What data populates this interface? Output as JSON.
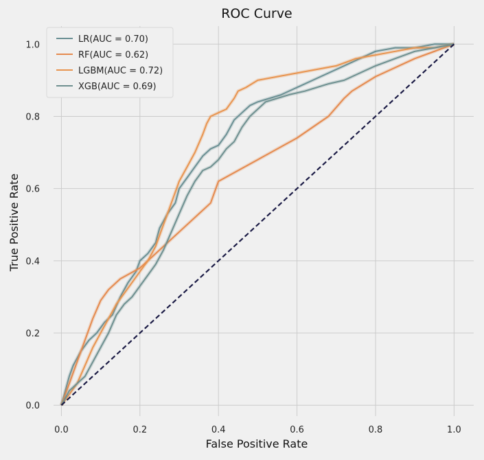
{
  "chart_data": {
    "type": "line",
    "title": "ROC Curve",
    "xlabel": "False Positive Rate",
    "ylabel": "True Positive Rate",
    "xlim": [
      -0.02,
      1.05
    ],
    "ylim": [
      -0.03,
      1.05
    ],
    "xticks": [
      0.0,
      0.2,
      0.4,
      0.6,
      0.8,
      1.0
    ],
    "yticks": [
      0.0,
      0.2,
      0.4,
      0.6,
      0.8,
      1.0
    ],
    "tick_labels": [
      "0.0",
      "0.2",
      "0.4",
      "0.6",
      "0.8",
      "1.0"
    ],
    "grid": true,
    "legend_position": "top-left",
    "colors": {
      "background": "#f0f0f0",
      "grid": "#cbcbcb",
      "lr": "#6a8f93",
      "rf": "#e58a4e",
      "lgbm": "#e8944f",
      "xgb": "#6e9090",
      "diagonal": "#1b1b45"
    },
    "series": [
      {
        "name": "LR(AUC = 0.70)",
        "color": "#6a8f93",
        "x": [
          0,
          0.01,
          0.02,
          0.03,
          0.05,
          0.07,
          0.09,
          0.11,
          0.13,
          0.15,
          0.17,
          0.19,
          0.2,
          0.22,
          0.24,
          0.25,
          0.27,
          0.29,
          0.3,
          0.32,
          0.34,
          0.36,
          0.38,
          0.4,
          0.42,
          0.44,
          0.46,
          0.48,
          0.5,
          0.53,
          0.56,
          0.6,
          0.64,
          0.68,
          0.72,
          0.76,
          0.8,
          0.85,
          0.9,
          0.95,
          1.0
        ],
        "y": [
          0,
          0.04,
          0.08,
          0.11,
          0.15,
          0.18,
          0.2,
          0.23,
          0.25,
          0.3,
          0.34,
          0.37,
          0.4,
          0.42,
          0.45,
          0.49,
          0.53,
          0.56,
          0.6,
          0.63,
          0.66,
          0.69,
          0.71,
          0.72,
          0.75,
          0.79,
          0.81,
          0.83,
          0.84,
          0.85,
          0.86,
          0.88,
          0.9,
          0.92,
          0.94,
          0.96,
          0.98,
          0.99,
          0.99,
          1.0,
          1.0
        ]
      },
      {
        "name": "RF(AUC = 0.62)",
        "color": "#e58a4e",
        "x": [
          0,
          0.02,
          0.05,
          0.08,
          0.1,
          0.12,
          0.15,
          0.2,
          0.25,
          0.3,
          0.35,
          0.38,
          0.4,
          0.5,
          0.6,
          0.68,
          0.72,
          0.74,
          0.8,
          0.9,
          1.0
        ],
        "y": [
          0,
          0.06,
          0.15,
          0.24,
          0.29,
          0.32,
          0.35,
          0.38,
          0.43,
          0.48,
          0.53,
          0.56,
          0.62,
          0.68,
          0.74,
          0.8,
          0.85,
          0.87,
          0.91,
          0.96,
          1.0
        ]
      },
      {
        "name": "LGBM(AUC = 0.72)",
        "color": "#e8944f",
        "x": [
          0,
          0.02,
          0.04,
          0.06,
          0.08,
          0.1,
          0.12,
          0.14,
          0.16,
          0.18,
          0.2,
          0.22,
          0.24,
          0.26,
          0.28,
          0.3,
          0.32,
          0.34,
          0.36,
          0.37,
          0.38,
          0.4,
          0.42,
          0.44,
          0.45,
          0.47,
          0.5,
          0.55,
          0.6,
          0.65,
          0.7,
          0.75,
          0.8,
          0.85,
          0.9,
          0.95,
          1.0
        ],
        "y": [
          0,
          0.03,
          0.06,
          0.11,
          0.16,
          0.2,
          0.24,
          0.28,
          0.31,
          0.34,
          0.37,
          0.4,
          0.44,
          0.5,
          0.56,
          0.62,
          0.66,
          0.7,
          0.75,
          0.78,
          0.8,
          0.81,
          0.82,
          0.85,
          0.87,
          0.88,
          0.9,
          0.91,
          0.92,
          0.93,
          0.94,
          0.96,
          0.97,
          0.98,
          0.99,
          0.99,
          1.0
        ]
      },
      {
        "name": "XGB(AUC = 0.69)",
        "color": "#6e9090",
        "x": [
          0,
          0.01,
          0.02,
          0.04,
          0.06,
          0.08,
          0.1,
          0.12,
          0.14,
          0.16,
          0.18,
          0.2,
          0.22,
          0.24,
          0.26,
          0.28,
          0.3,
          0.32,
          0.34,
          0.36,
          0.38,
          0.4,
          0.42,
          0.44,
          0.46,
          0.48,
          0.5,
          0.52,
          0.55,
          0.58,
          0.62,
          0.65,
          0.68,
          0.72,
          0.76,
          0.8,
          0.85,
          0.9,
          0.95,
          1.0
        ],
        "y": [
          0,
          0.02,
          0.04,
          0.06,
          0.08,
          0.12,
          0.16,
          0.2,
          0.25,
          0.28,
          0.3,
          0.33,
          0.36,
          0.39,
          0.43,
          0.48,
          0.53,
          0.58,
          0.62,
          0.65,
          0.66,
          0.68,
          0.71,
          0.73,
          0.77,
          0.8,
          0.82,
          0.84,
          0.85,
          0.86,
          0.87,
          0.88,
          0.89,
          0.9,
          0.92,
          0.94,
          0.96,
          0.98,
          0.99,
          1.0
        ]
      },
      {
        "name": "",
        "color": "#1b1b45",
        "dashed": true,
        "x": [
          0,
          1
        ],
        "y": [
          0,
          1
        ]
      }
    ]
  }
}
